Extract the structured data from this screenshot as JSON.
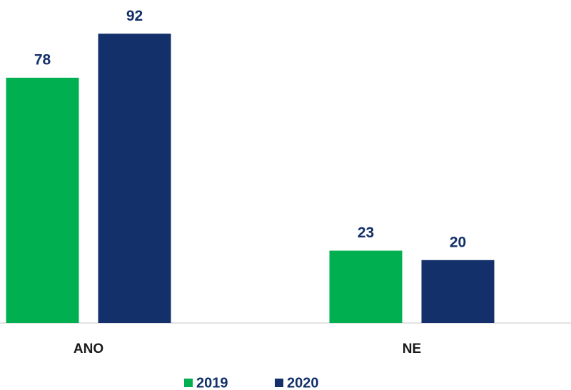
{
  "chart_data": {
    "type": "bar",
    "categories": [
      "ANO",
      "NE"
    ],
    "series": [
      {
        "name": "2019",
        "color": "#00b050",
        "values": [
          78,
          23
        ]
      },
      {
        "name": "2020",
        "color": "#13306a",
        "values": [
          92,
          20
        ]
      }
    ],
    "ylim": [
      0,
      100
    ]
  }
}
